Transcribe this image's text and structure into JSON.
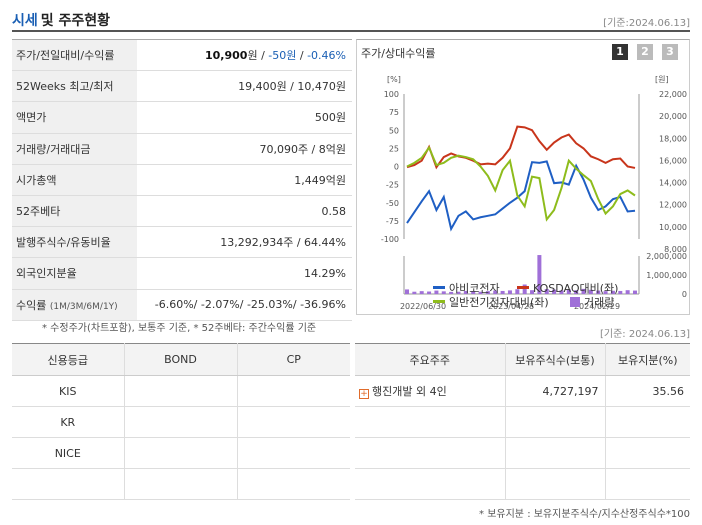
{
  "header": {
    "title_main": "시세",
    "title_rest": "및 주주현황",
    "date": "[기준:2024.06.13]"
  },
  "summary": {
    "rows": [
      {
        "label": "주가/전일대비/수익률",
        "v1": "10,900",
        "u1": "원",
        "sep1": " / ",
        "v2": "-50원",
        "sep2": " / ",
        "v3": "-0.46%"
      },
      {
        "label": "52Weeks 최고/최저",
        "value": "19,400원 / 10,470원"
      },
      {
        "label": "액면가",
        "value": "500원"
      },
      {
        "label": "거래량/거래대금",
        "value": "70,090주 / 8억원"
      },
      {
        "label": "시가총액",
        "value": "1,449억원"
      },
      {
        "label": "52주베타",
        "value": "0.58"
      },
      {
        "label": "발행주식수/유동비율",
        "value": "13,292,934주 / 64.44%"
      },
      {
        "label": "외국인지분율",
        "value": "14.29%"
      },
      {
        "label": "수익률",
        "label_small": "(1M/3M/6M/1Y)",
        "value": "-6.60%/ -2.07%/ -25.03%/ -36.96%"
      }
    ],
    "note": "* 수정주가(차트포함), 보통주 기준, * 52주베타: 주간수익률 기준"
  },
  "chart_panel": {
    "title": "주가/상대수익률",
    "pages": [
      "1",
      "2",
      "3"
    ],
    "colors": {
      "active": "#333333",
      "inactive": "#bbbbbb"
    }
  },
  "chart_data": {
    "type": "line",
    "left_unit": "[%]",
    "right_unit": "[원]",
    "left_ticks": [
      "100",
      "75",
      "50",
      "25",
      "0",
      "-25",
      "-50",
      "-75",
      "-100"
    ],
    "right_ticks": [
      "22,000",
      "20,000",
      "18,000",
      "16,000",
      "14,000",
      "12,000",
      "10,000",
      "8,000"
    ],
    "volume_ticks": [
      "2,000,000",
      "1,000,000",
      "0"
    ],
    "x_labels": [
      "2022/06/30",
      "2023/04/28",
      "2024/02/29"
    ],
    "ylim": [
      -100,
      100
    ],
    "series": [
      {
        "name": "아비코전자",
        "color": "#1f5fc4",
        "values": [
          -78,
          -63,
          -48,
          -34,
          -60,
          -42,
          -86,
          -68,
          -62,
          -73,
          -70,
          -68,
          -66,
          -58,
          -50,
          -43,
          -34,
          6,
          5,
          7,
          -23,
          -22,
          -25,
          1,
          -18,
          -43,
          -60,
          -55,
          -45,
          -42,
          -62,
          -61
        ]
      },
      {
        "name": "KOSDAQ대비(좌)",
        "color": "#c8351b",
        "values": [
          -1,
          2,
          8,
          27,
          -1,
          13,
          18,
          14,
          12,
          8,
          3,
          4,
          3,
          12,
          25,
          55,
          54,
          50,
          35,
          23,
          33,
          40,
          44,
          32,
          25,
          14,
          10,
          5,
          10,
          11,
          0,
          -2
        ]
      },
      {
        "name": "일반전기전자대비(좌)",
        "color": "#8ebc1c",
        "values": [
          0,
          5,
          12,
          26,
          2,
          5,
          12,
          15,
          13,
          10,
          0,
          -13,
          -33,
          -5,
          8,
          -40,
          -55,
          -14,
          -16,
          -73,
          -60,
          -30,
          8,
          -3,
          -12,
          -20,
          -45,
          -65,
          -55,
          -38,
          -33,
          -40
        ]
      },
      {
        "name": "거래량",
        "color": "#a070d8",
        "values": [
          240000,
          120000,
          150000,
          130000,
          180000,
          140000,
          110000,
          120000,
          160000,
          130000,
          120000,
          150000,
          180000,
          160000,
          190000,
          250000,
          500000,
          200000,
          2050000,
          260000,
          230000,
          190000,
          240000,
          200000,
          270000,
          220000,
          180000,
          150000,
          170000,
          160000,
          200000,
          180000
        ]
      }
    ]
  },
  "credit": {
    "headers": [
      "신용등급",
      "BOND",
      "CP"
    ],
    "rows": [
      {
        "agency": "KIS",
        "bond": "",
        "cp": ""
      },
      {
        "agency": "KR",
        "bond": "",
        "cp": ""
      },
      {
        "agency": "NICE",
        "bond": "",
        "cp": ""
      },
      {
        "agency": "",
        "bond": "",
        "cp": ""
      }
    ]
  },
  "holders": {
    "date": "[기준: 2024.06.13]",
    "headers": [
      "주요주주",
      "보유주식수(보통)",
      "보유지분(%)"
    ],
    "rows": [
      {
        "name": "행진개발 외 4인",
        "shares": "4,727,197",
        "pct": "35.56"
      }
    ],
    "note": "* 보유지분 : 보유지분주식수/지수산정주식수*100"
  }
}
